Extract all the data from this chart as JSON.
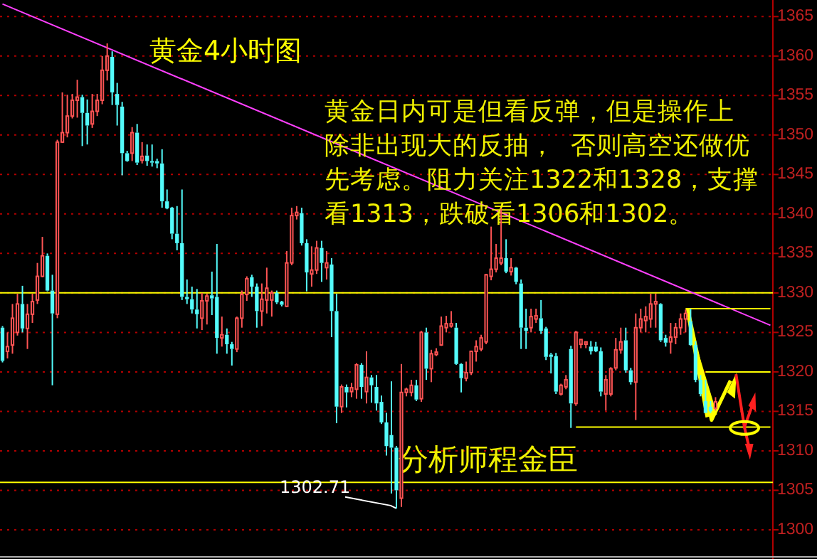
{
  "chart_data": {
    "type": "candlestick",
    "title": "黄金4小时图",
    "categories": [
      null,
      null,
      null,
      null,
      null,
      null,
      null,
      null,
      null,
      null,
      null,
      null,
      null,
      null,
      null,
      null,
      null,
      null,
      null,
      null,
      null,
      null,
      null,
      null,
      null,
      null,
      null,
      null,
      null,
      null,
      null,
      null,
      null,
      null,
      null,
      null,
      null,
      null,
      null,
      null,
      null,
      null,
      null,
      null,
      null,
      null,
      null,
      null,
      null,
      null,
      null,
      null,
      null,
      null,
      null,
      null,
      null,
      null,
      null,
      null,
      null,
      null,
      null,
      null,
      null,
      null,
      null,
      null,
      null,
      null,
      null,
      null,
      null,
      null,
      null,
      null,
      null,
      null,
      null,
      null,
      null,
      null,
      null,
      null,
      null,
      null,
      null,
      null,
      null,
      null,
      null,
      null,
      null,
      null,
      null,
      null,
      null,
      null,
      null,
      null,
      null,
      null,
      null,
      null,
      null,
      null,
      null,
      null,
      null,
      null,
      null,
      null,
      null,
      null,
      null,
      null,
      null,
      null,
      null,
      null,
      null,
      null,
      null,
      null,
      null,
      null,
      null,
      null,
      null,
      null,
      null,
      null,
      null,
      null,
      null,
      null,
      null,
      null,
      null,
      null,
      null,
      null,
      null,
      null,
      null,
      null,
      null,
      null,
      null,
      null,
      null,
      null,
      null,
      null,
      null
    ],
    "ohlc": [
      [
        1325.6,
        1325.8,
        1321.2,
        1321.4
      ],
      [
        1322.6,
        1325.0,
        1321.7,
        1323.2
      ],
      [
        1323.4,
        1328.6,
        1322.3,
        1326.8
      ],
      [
        1325.0,
        1329.9,
        1324.6,
        1328.6
      ],
      [
        1328.6,
        1330.9,
        1325.0,
        1325.5
      ],
      [
        1325.5,
        1328.6,
        1322.9,
        1327.3
      ],
      [
        1327.3,
        1329.9,
        1326.2,
        1328.9
      ],
      [
        1329.1,
        1333.8,
        1328.6,
        1332.1
      ],
      [
        1332.1,
        1337.1,
        1332.0,
        1334.7
      ],
      [
        1334.7,
        1335.0,
        1330.2,
        1330.3
      ],
      [
        1330.3,
        1332.3,
        1318.3,
        1327.4
      ],
      [
        1327.3,
        1349.4,
        1326.8,
        1349.1
      ],
      [
        1349.1,
        1355.4,
        1349.0,
        1350.3
      ],
      [
        1350.3,
        1355.1,
        1349.7,
        1352.4
      ],
      [
        1352.4,
        1355.2,
        1352.1,
        1354.4
      ],
      [
        1354.4,
        1357.0,
        1352.2,
        1354.8
      ],
      [
        1354.8,
        1355.1,
        1348.6,
        1352.8
      ],
      [
        1352.8,
        1354.5,
        1348.8,
        1351.2
      ],
      [
        1351.4,
        1355.2,
        1350.9,
        1353.0
      ],
      [
        1353.0,
        1355.2,
        1352.4,
        1354.4
      ],
      [
        1354.4,
        1360.0,
        1353.9,
        1358.2
      ],
      [
        1358.2,
        1361.6,
        1356.9,
        1360.0
      ],
      [
        1359.9,
        1360.6,
        1353.8,
        1355.4
      ],
      [
        1355.2,
        1356.6,
        1351.2,
        1353.8
      ],
      [
        1353.6,
        1354.2,
        1344.9,
        1347.7
      ],
      [
        1347.7,
        1348.0,
        1346.6,
        1346.7
      ],
      [
        1347.7,
        1351.0,
        1346.7,
        1350.3
      ],
      [
        1350.3,
        1351.4,
        1346.2,
        1346.5
      ],
      [
        1346.8,
        1349.1,
        1346.4,
        1347.3
      ],
      [
        1347.4,
        1348.8,
        1346.1,
        1346.7
      ],
      [
        1346.7,
        1348.8,
        1346.0,
        1346.5
      ],
      [
        1346.7,
        1347.0,
        1345.8,
        1346.4
      ],
      [
        1346.4,
        1348.2,
        1340.8,
        1341.6
      ],
      [
        1341.6,
        1343.1,
        1340.6,
        1340.7
      ],
      [
        1340.8,
        1340.9,
        1336.8,
        1337.5
      ],
      [
        1337.5,
        1341.0,
        1335.4,
        1336.3
      ],
      [
        1336.3,
        1343.1,
        1329.1,
        1329.5
      ],
      [
        1329.5,
        1331.7,
        1328.6,
        1329.2
      ],
      [
        1329.2,
        1330.8,
        1327.4,
        1327.9
      ],
      [
        1327.9,
        1330.5,
        1325.5,
        1327.3
      ],
      [
        1326.8,
        1330.0,
        1325.3,
        1329.0
      ],
      [
        1329.0,
        1329.9,
        1326.0,
        1329.6
      ],
      [
        1329.7,
        1332.7,
        1327.2,
        1329.3
      ],
      [
        1329.5,
        1336.2,
        1322.3,
        1324.3
      ],
      [
        1324.3,
        1327.0,
        1323.2,
        1324.7
      ],
      [
        1324.7,
        1325.5,
        1322.3,
        1323.5
      ],
      [
        1323.5,
        1323.8,
        1320.8,
        1322.9
      ],
      [
        1322.9,
        1327.0,
        1322.5,
        1326.8
      ],
      [
        1326.8,
        1330.3,
        1325.6,
        1329.8
      ],
      [
        1329.8,
        1332.1,
        1329.0,
        1331.8
      ],
      [
        1332.0,
        1332.3,
        1329.5,
        1330.8
      ],
      [
        1330.8,
        1331.2,
        1325.6,
        1327.7
      ],
      [
        1327.7,
        1331.2,
        1325.8,
        1329.2
      ],
      [
        1329.1,
        1333.2,
        1327.4,
        1330.6
      ],
      [
        1329.1,
        1330.3,
        1327.0,
        1330.0
      ],
      [
        1330.0,
        1330.3,
        1328.6,
        1328.8
      ],
      [
        1328.9,
        1329.0,
        1328.3,
        1328.5
      ],
      [
        1328.3,
        1335.3,
        1328.2,
        1333.8
      ],
      [
        1333.8,
        1340.8,
        1333.5,
        1339.8
      ],
      [
        1339.8,
        1341.0,
        1339.3,
        1340.2
      ],
      [
        1340.1,
        1340.8,
        1336.0,
        1336.3
      ],
      [
        1336.3,
        1336.8,
        1330.2,
        1332.6
      ],
      [
        1332.4,
        1335.9,
        1330.8,
        1332.9
      ],
      [
        1332.9,
        1336.6,
        1332.4,
        1335.7
      ],
      [
        1335.7,
        1336.6,
        1331.4,
        1333.8
      ],
      [
        1333.2,
        1335.3,
        1331.7,
        1333.8
      ],
      [
        1333.6,
        1334.4,
        1324.4,
        1327.7
      ],
      [
        1327.7,
        1329.9,
        1313.5,
        1315.6
      ],
      [
        1315.6,
        1318.4,
        1314.8,
        1318.1
      ],
      [
        1318.1,
        1318.4,
        1315.5,
        1317.4
      ],
      [
        1317.5,
        1318.6,
        1316.8,
        1318.0
      ],
      [
        1317.8,
        1321.1,
        1316.6,
        1320.9
      ],
      [
        1320.9,
        1321.1,
        1316.6,
        1318.1
      ],
      [
        1317.5,
        1322.6,
        1316.0,
        1319.3
      ],
      [
        1319.3,
        1319.6,
        1316.1,
        1318.3
      ],
      [
        1318.1,
        1319.6,
        1315.1,
        1316.0
      ],
      [
        1316.2,
        1317.0,
        1313.4,
        1313.6
      ],
      [
        1313.6,
        1314.8,
        1309.4,
        1310.6
      ],
      [
        1312.0,
        1318.8,
        1304.6,
        1310.4
      ],
      [
        1310.4,
        1310.6,
        1302.71,
        1305.0
      ],
      [
        1304.0,
        1321.0,
        1302.9,
        1317.4
      ],
      [
        1317.4,
        1318.0,
        1316.9,
        1317.8
      ],
      [
        1317.4,
        1319.0,
        1316.9,
        1318.3
      ],
      [
        1318.3,
        1319.0,
        1316.3,
        1316.5
      ],
      [
        1316.6,
        1325.2,
        1316.2,
        1325.0
      ],
      [
        1325.0,
        1325.6,
        1319.0,
        1320.4
      ],
      [
        1320.4,
        1322.8,
        1318.7,
        1322.3
      ],
      [
        1322.2,
        1323.0,
        1322.0,
        1322.5
      ],
      [
        1323.4,
        1327.0,
        1323.3,
        1325.8
      ],
      [
        1325.6,
        1327.1,
        1325.0,
        1326.1
      ],
      [
        1325.8,
        1327.7,
        1325.6,
        1326.1
      ],
      [
        1325.6,
        1326.2,
        1320.9,
        1321.0
      ],
      [
        1321.0,
        1321.1,
        1317.4,
        1319.2
      ],
      [
        1319.2,
        1321.3,
        1318.8,
        1319.9
      ],
      [
        1319.9,
        1322.7,
        1319.6,
        1322.6
      ],
      [
        1322.6,
        1324.0,
        1321.3,
        1323.2
      ],
      [
        1322.9,
        1324.7,
        1322.6,
        1324.3
      ],
      [
        1323.8,
        1332.4,
        1323.5,
        1332.3
      ],
      [
        1332.1,
        1338.4,
        1331.6,
        1333.0
      ],
      [
        1333.0,
        1336.2,
        1332.6,
        1334.4
      ],
      [
        1333.8,
        1340.7,
        1333.5,
        1334.4
      ],
      [
        1334.4,
        1336.8,
        1332.5,
        1332.7
      ],
      [
        1332.7,
        1334.4,
        1332.2,
        1333.2
      ],
      [
        1333.2,
        1333.3,
        1331.1,
        1331.4
      ],
      [
        1331.2,
        1331.7,
        1322.9,
        1325.6
      ],
      [
        1325.6,
        1328.0,
        1322.9,
        1325.2
      ],
      [
        1325.6,
        1328.0,
        1325.0,
        1327.0
      ],
      [
        1326.7,
        1328.0,
        1326.2,
        1327.1
      ],
      [
        1326.8,
        1329.1,
        1324.8,
        1325.2
      ],
      [
        1325.5,
        1325.7,
        1321.5,
        1321.9
      ],
      [
        1322.2,
        1322.4,
        1319.8,
        1321.9
      ],
      [
        1322.0,
        1322.4,
        1317.2,
        1317.5
      ],
      [
        1317.2,
        1318.5,
        1317.0,
        1318.3
      ],
      [
        1318.1,
        1319.6,
        1317.8,
        1319.0
      ],
      [
        1322.9,
        1323.3,
        1312.9,
        1316.0
      ],
      [
        1316.0,
        1325.2,
        1315.7,
        1325.0
      ],
      [
        1323.5,
        1324.1,
        1323.0,
        1324.1
      ],
      [
        1323.5,
        1323.8,
        1323.0,
        1323.8
      ],
      [
        1323.2,
        1323.9,
        1322.2,
        1322.6
      ],
      [
        1323.2,
        1323.8,
        1322.5,
        1322.6
      ],
      [
        1322.6,
        1323.1,
        1316.9,
        1317.5
      ],
      [
        1317.2,
        1319.6,
        1315.1,
        1319.0
      ],
      [
        1317.2,
        1320.6,
        1316.9,
        1320.4
      ],
      [
        1320.5,
        1324.3,
        1320.2,
        1322.8
      ],
      [
        1322.8,
        1325.6,
        1322.3,
        1323.8
      ],
      [
        1324.0,
        1325.6,
        1319.9,
        1320.2
      ],
      [
        1320.2,
        1320.5,
        1318.4,
        1318.7
      ],
      [
        1318.7,
        1327.4,
        1313.9,
        1325.6
      ],
      [
        1325.6,
        1328.0,
        1325.0,
        1326.7
      ],
      [
        1326.5,
        1328.3,
        1325.0,
        1327.0
      ],
      [
        1326.7,
        1329.9,
        1325.6,
        1328.6
      ],
      [
        1328.6,
        1329.9,
        1325.6,
        1328.9
      ],
      [
        1328.6,
        1328.7,
        1323.8,
        1324.0
      ],
      [
        1324.3,
        1324.7,
        1323.2,
        1323.7
      ],
      [
        1323.8,
        1326.2,
        1322.3,
        1324.4
      ],
      [
        1324.4,
        1326.2,
        1323.5,
        1325.6
      ],
      [
        1325.6,
        1327.4,
        1324.7,
        1326.7
      ],
      [
        1326.7,
        1327.9,
        1325.0,
        1327.4
      ],
      [
        1326.4,
        1328.0,
        1323.3,
        1323.4
      ],
      [
        1323.4,
        1323.9,
        1318.7,
        1319.0
      ],
      [
        1319.0,
        1319.6,
        1316.9,
        1317.2
      ],
      [
        1316.3,
        1319.0,
        1314.8,
        1314.8
      ],
      [
        1315.6,
        1316.3,
        1314.8,
        1315.0
      ],
      [
        1315.4,
        1316.8,
        1315.1,
        1316.2
      ],
      null,
      null,
      null,
      null,
      null,
      null,
      null,
      null,
      null,
      null,
      null
    ],
    "series": [
      {
        "type": "line",
        "values": [
          1366.6,
          null,
          null,
          null,
          null,
          null,
          null,
          null,
          null,
          null,
          null,
          null,
          null,
          null,
          null,
          null,
          null,
          null,
          null,
          null,
          null,
          null,
          null,
          null,
          null,
          null,
          null,
          null,
          null,
          null,
          null,
          null,
          null,
          null,
          null,
          null,
          null,
          null,
          null,
          null,
          null,
          null,
          null,
          null,
          null,
          null,
          null,
          null,
          null,
          null,
          null,
          null,
          null,
          null,
          null,
          null,
          null,
          null,
          null,
          null,
          null,
          null,
          null,
          null,
          null,
          null,
          null,
          null,
          null,
          null,
          null,
          null,
          null,
          null,
          null,
          null,
          null,
          null,
          null,
          null,
          null,
          null,
          null,
          null,
          null,
          null,
          null,
          null,
          null,
          null,
          null,
          null,
          null,
          null,
          null,
          null,
          null,
          null,
          null,
          null,
          null,
          null,
          null,
          null,
          null,
          null,
          null,
          null,
          null,
          null,
          null,
          null,
          null,
          null,
          null,
          null,
          null,
          null,
          null,
          null,
          null,
          null,
          null,
          null,
          null,
          null,
          null,
          null,
          null,
          null,
          null,
          null,
          null,
          null,
          null,
          null,
          null,
          null,
          null,
          null,
          null,
          null,
          null,
          null,
          null,
          null,
          null,
          null,
          null,
          null,
          null,
          null,
          null,
          null,
          1325.9
        ],
        "color": "#ff40ff"
      },
      {
        "type": "line",
        "values": [
          null,
          null,
          null,
          null,
          null,
          null,
          null,
          null,
          null,
          null,
          null,
          null,
          null,
          null,
          null,
          null,
          null,
          null,
          null,
          null,
          null,
          null,
          null,
          null,
          null,
          null,
          null,
          null,
          null,
          null,
          null,
          null,
          null,
          null,
          null,
          null,
          null,
          null,
          null,
          null,
          null,
          null,
          null,
          null,
          null,
          null,
          null,
          null,
          null,
          null,
          null,
          null,
          null,
          null,
          null,
          null,
          null,
          null,
          null,
          null,
          null,
          null,
          null,
          null,
          null,
          null,
          null,
          null,
          null,
          null,
          null,
          null,
          null,
          null,
          null,
          null,
          null,
          null,
          null,
          null,
          null,
          null,
          null,
          null,
          null,
          null,
          null,
          null,
          null,
          null,
          null,
          null,
          null,
          null,
          null,
          null,
          null,
          null,
          null,
          null,
          null,
          null,
          null,
          null,
          null,
          null,
          null,
          null,
          null,
          null,
          null,
          null,
          null,
          null,
          null,
          null,
          null,
          null,
          null,
          null,
          null,
          null,
          null,
          null,
          null,
          null,
          null,
          null,
          null,
          null,
          null,
          null,
          null,
          null,
          null,
          null,
          null,
          1328,
          null,
          null,
          null,
          null,
          null,
          null,
          null,
          null,
          null,
          null,
          null,
          null,
          null,
          null,
          null,
          null,
          1328
        ],
        "color": "#ffff00"
      },
      {
        "type": "line",
        "values": [
          null,
          null,
          null,
          null,
          null,
          null,
          null,
          null,
          null,
          null,
          null,
          null,
          null,
          null,
          null,
          null,
          null,
          null,
          null,
          null,
          null,
          null,
          null,
          null,
          null,
          null,
          null,
          null,
          null,
          null,
          null,
          null,
          null,
          null,
          null,
          null,
          null,
          null,
          null,
          null,
          null,
          null,
          null,
          null,
          null,
          null,
          null,
          null,
          null,
          null,
          null,
          null,
          null,
          null,
          null,
          null,
          null,
          null,
          null,
          null,
          null,
          null,
          null,
          null,
          null,
          null,
          null,
          null,
          null,
          null,
          null,
          null,
          null,
          null,
          null,
          null,
          null,
          null,
          null,
          null,
          null,
          null,
          null,
          null,
          null,
          null,
          null,
          null,
          null,
          null,
          null,
          null,
          null,
          null,
          null,
          null,
          null,
          null,
          null,
          null,
          null,
          null,
          null,
          null,
          null,
          null,
          null,
          null,
          null,
          null,
          null,
          null,
          null,
          null,
          null,
          null,
          null,
          null,
          null,
          null,
          null,
          null,
          null,
          null,
          null,
          null,
          null,
          null,
          null,
          null,
          null,
          null,
          null,
          null,
          null,
          null,
          null,
          null,
          null,
          null,
          null,
          1320,
          null,
          null,
          null,
          null,
          null,
          null,
          null,
          null,
          null,
          null,
          null,
          null,
          1320
        ],
        "color": "#ffff00"
      },
      {
        "type": "line",
        "values": [
          null,
          null,
          null,
          null,
          null,
          null,
          null,
          null,
          null,
          null,
          null,
          null,
          null,
          null,
          null,
          null,
          null,
          null,
          null,
          null,
          null,
          null,
          null,
          null,
          null,
          null,
          null,
          null,
          null,
          null,
          null,
          null,
          null,
          null,
          null,
          null,
          null,
          null,
          null,
          null,
          null,
          null,
          null,
          null,
          null,
          null,
          null,
          null,
          null,
          null,
          null,
          null,
          null,
          null,
          null,
          null,
          null,
          null,
          null,
          null,
          null,
          null,
          null,
          null,
          null,
          null,
          null,
          null,
          null,
          null,
          null,
          null,
          null,
          null,
          null,
          null,
          null,
          null,
          null,
          null,
          null,
          null,
          null,
          null,
          null,
          null,
          null,
          null,
          null,
          null,
          null,
          null,
          null,
          null,
          null,
          null,
          null,
          null,
          null,
          null,
          null,
          null,
          null,
          null,
          null,
          null,
          null,
          null,
          null,
          null,
          null,
          null,
          null,
          null,
          null,
          1313,
          null,
          null,
          null,
          null,
          null,
          null,
          null,
          null,
          null,
          null,
          null,
          null,
          null,
          null,
          null,
          null,
          null,
          null,
          null,
          null,
          null,
          null,
          null,
          null,
          null,
          null,
          null,
          null,
          null,
          null,
          null,
          null,
          null,
          null,
          null,
          null,
          null,
          null,
          1313
        ],
        "color": "#ffff00"
      }
    ],
    "ref_lines": [
      {
        "axis": "y",
        "value": 1330,
        "color": "#ffff00"
      },
      {
        "axis": "y",
        "value": 1306,
        "color": "#ffff00"
      }
    ],
    "annotations": [
      "黄金日内可是但看反弹，但是操作上",
      "除非出现大的反抽，  否则高空还做优",
      "先考虑。阻力关注1322和1328，支撑",
      "看1313，跌破看1306和1302。",
      "分析师程金臣",
      "1302.71"
    ],
    "ylim": [
      1296.3,
      1367.1
    ],
    "yticks": [
      1300,
      1305,
      1310,
      1315,
      1320,
      1325,
      1330,
      1335,
      1340,
      1345,
      1350,
      1355,
      1360,
      1365
    ],
    "grid": "y"
  }
}
